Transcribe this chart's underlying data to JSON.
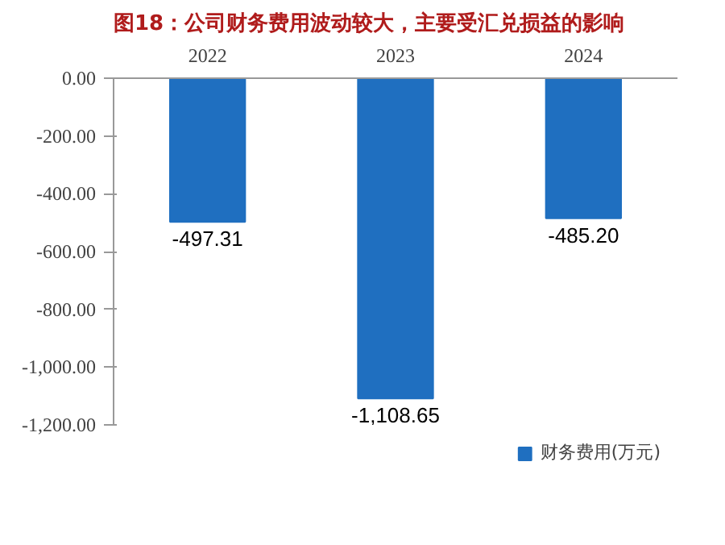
{
  "chart_data": {
    "type": "bar",
    "title": "图18：公司财务费用波动较大，主要受汇兑损益的影响",
    "categories": [
      "2022",
      "2023",
      "2024"
    ],
    "series": [
      {
        "name": "财务费用(万元)",
        "color": "#1f6fc0",
        "values": [
          -497.31,
          -1108.65,
          -485.2
        ]
      }
    ],
    "value_labels": [
      "-497.31",
      "-1,108.65",
      "-485.20"
    ],
    "ylim": [
      -1200,
      0
    ],
    "yticks": [
      {
        "value": 0,
        "label": "0.00"
      },
      {
        "value": -200,
        "label": "-200.00"
      },
      {
        "value": -400,
        "label": "-400.00"
      },
      {
        "value": -600,
        "label": "-600.00"
      },
      {
        "value": -800,
        "label": "-800.00"
      },
      {
        "value": -1000,
        "label": "-1,000.00"
      },
      {
        "value": -1200,
        "label": "-1,200.00"
      }
    ],
    "grid": false,
    "legend": "bottom"
  }
}
